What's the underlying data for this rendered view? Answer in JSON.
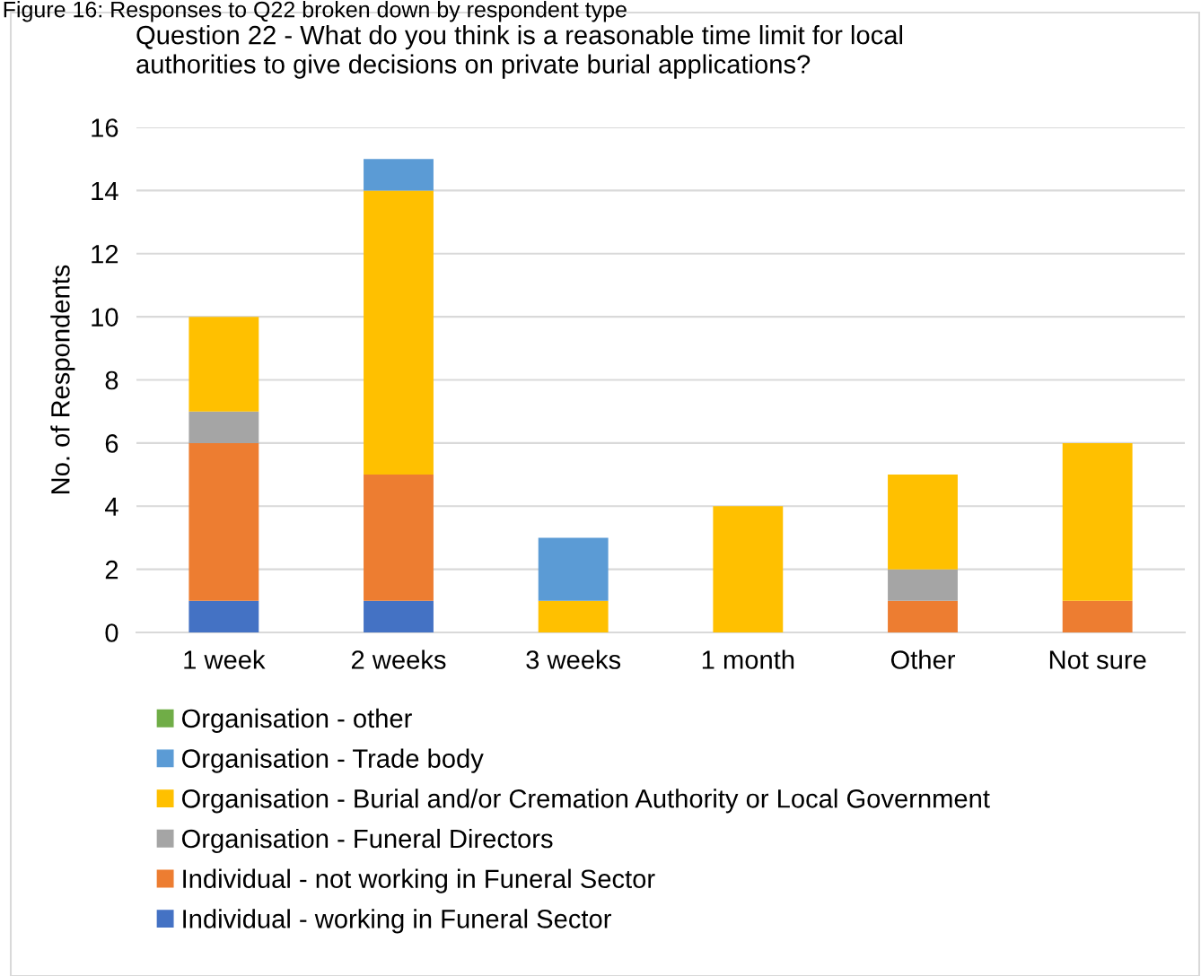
{
  "chart_data": {
    "type": "bar",
    "stacked": true,
    "title": "Question 22 - What do you think is a reasonable time limit for local\nauthorities to give decisions on private burial applications?",
    "ylabel": "No. of Respondents",
    "annotations": [
      "Figure 16: Responses to Q22 broken down by respondent type"
    ],
    "categories": [
      "1 week",
      "2 weeks",
      "3 weeks",
      "1 month",
      "Other",
      "Not sure"
    ],
    "series": [
      {
        "name": "Individual - working in Funeral Sector",
        "color": "#4472c4",
        "values": [
          1,
          1,
          0,
          0,
          0,
          0
        ]
      },
      {
        "name": "Individual - not working in Funeral Sector",
        "color": "#ed7d31",
        "values": [
          5,
          4,
          0,
          0,
          1,
          1
        ]
      },
      {
        "name": "Organisation - Funeral Directors",
        "color": "#a5a5a5",
        "values": [
          1,
          0,
          0,
          0,
          1,
          0
        ]
      },
      {
        "name": "Organisation - Burial and/or Cremation Authority or Local Government",
        "color": "#ffc000",
        "values": [
          3,
          9,
          1,
          4,
          3,
          5
        ]
      },
      {
        "name": "Organisation - Trade body",
        "color": "#5b9bd5",
        "values": [
          0,
          1,
          2,
          0,
          0,
          0
        ]
      },
      {
        "name": "Organisation - other",
        "color": "#70ad47",
        "values": [
          0,
          0,
          0,
          0,
          0,
          0
        ]
      }
    ],
    "ylim": [
      0,
      16
    ],
    "yticks": [
      0,
      2,
      4,
      6,
      8,
      10,
      12,
      14,
      16
    ],
    "grid": "y",
    "legend": "bottom"
  }
}
